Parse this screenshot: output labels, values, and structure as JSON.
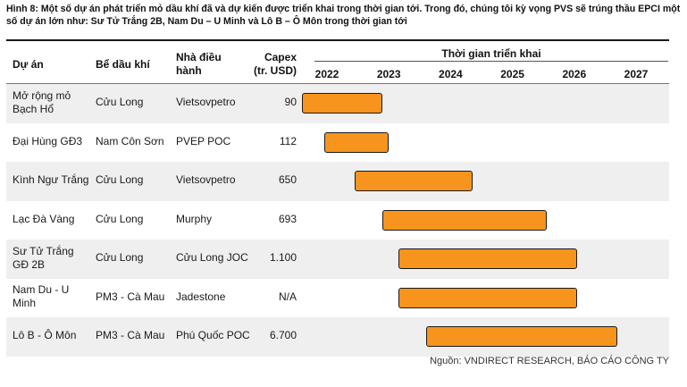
{
  "caption": "Hình 8: Một số dự án phát triển mỏ dầu khí đã và dự kiến được triển khai trong thời gian tới. Trong đó, chúng tôi kỳ vọng PVS sẽ trúng thầu EPCI một số dự án lớn như: Sư Tử Trắng 2B, Nam Du – U Minh và Lô B – Ô Môn trong thời gian tới",
  "headers": {
    "project": "Dự án",
    "basin": "Bể dầu khí",
    "operator_line1": "Nhà điều",
    "operator_line2": "hành",
    "capex_line1": "Capex",
    "capex_line2": "(tr. USD)",
    "timeline": "Thời gian triển khai"
  },
  "source": "Nguồn: VNDIRECT RESEARCH, BÁO CÁO CÔNG TY",
  "colors": {
    "bar": "#f7941d",
    "shade": "#efefef"
  },
  "chart_data": {
    "type": "gantt",
    "title": "Thời gian triển khai",
    "x_axis": {
      "ticks": [
        2022,
        2023,
        2024,
        2025,
        2026,
        2027
      ],
      "range": [
        2021.6,
        2027.3
      ]
    },
    "rows": [
      {
        "project": [
          "Mở rộng mỏ",
          "Bạch Hổ"
        ],
        "basin": "Cửu Long",
        "operator": [
          "Vietsovpetro"
        ],
        "capex": "90",
        "start": 2021.6,
        "end": 2022.9
      },
      {
        "project": [
          "Đại Hùng GĐ3"
        ],
        "basin": "Nam Côn Sơn",
        "operator": [
          "PVEP POC"
        ],
        "capex": "112",
        "start": 2021.95,
        "end": 2023.0
      },
      {
        "project": [
          "Kình Ngư Trắng"
        ],
        "basin": "Cửu Long",
        "operator": [
          "Vietsovpetro"
        ],
        "capex": "650",
        "start": 2022.45,
        "end": 2024.35
      },
      {
        "project": [
          "Lạc Đà Vàng"
        ],
        "basin": "Cửu Long",
        "operator": [
          "Murphy"
        ],
        "capex": "693",
        "start": 2022.9,
        "end": 2025.55
      },
      {
        "project": [
          "Sư Tử Trắng",
          "GĐ 2B"
        ],
        "basin": "Cửu Long",
        "operator": [
          "Cửu Long JOC"
        ],
        "capex": "1.100",
        "start": 2023.15,
        "end": 2026.05
      },
      {
        "project": [
          "Nam Du - U",
          "Minh"
        ],
        "basin": "PM3 - Cà Mau",
        "operator": [
          "Jadestone"
        ],
        "capex": "N/A",
        "start": 2023.15,
        "end": 2026.05
      },
      {
        "project": [
          "Lô B - Ô Môn"
        ],
        "basin": "PM3 - Cà Mau",
        "operator": [
          "Phú Quốc POC"
        ],
        "capex": "6.700",
        "start": 2023.6,
        "end": 2026.7
      }
    ]
  }
}
